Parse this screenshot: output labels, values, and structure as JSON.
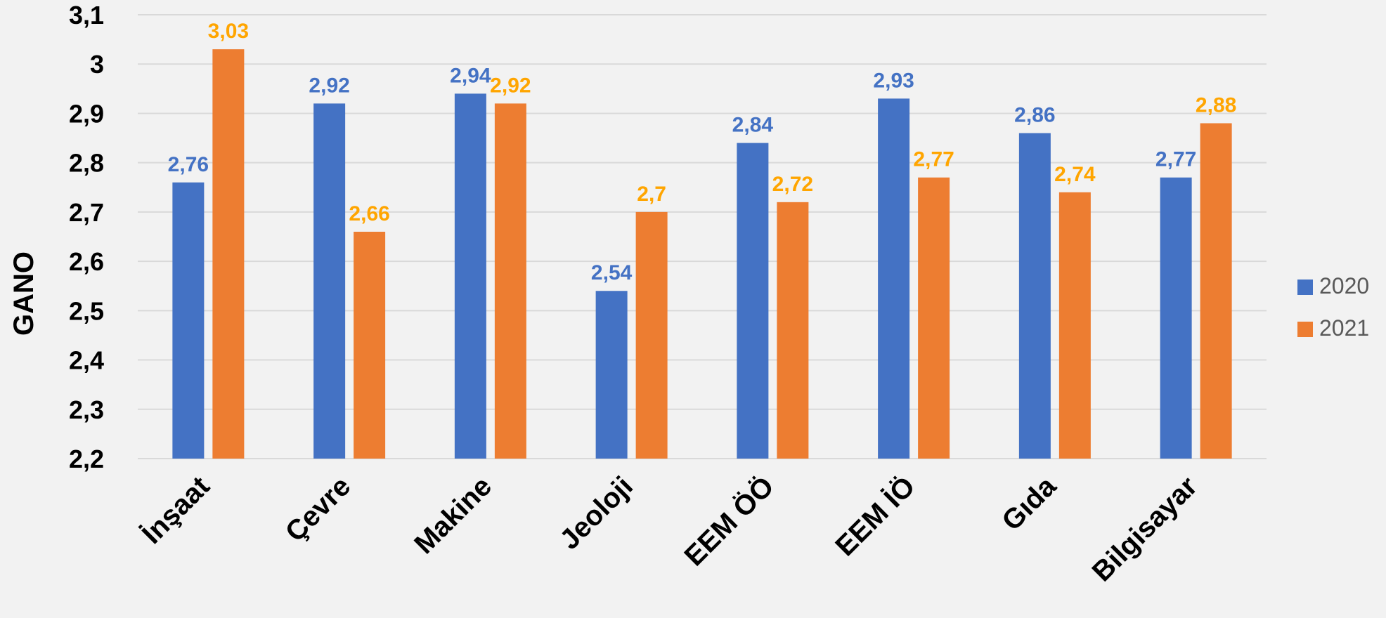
{
  "chart_data": {
    "type": "bar",
    "title": "",
    "xlabel": "",
    "ylabel": "GANO",
    "ylim": [
      2.2,
      3.1
    ],
    "yticks": [
      "2,2",
      "2,3",
      "2,4",
      "2,5",
      "2,6",
      "2,7",
      "2,8",
      "2,9",
      "3",
      "3,1"
    ],
    "categories": [
      "İnşaat",
      "Çevre",
      "Makine",
      "Jeoloji",
      "EEM ÖÖ",
      "EEM İÖ",
      "Gıda",
      "Bilgisayar"
    ],
    "series": [
      {
        "name": "2020",
        "color": "#4472c4",
        "label_color": "#4472c4",
        "values": [
          2.76,
          2.92,
          2.94,
          2.54,
          2.84,
          2.93,
          2.86,
          2.77
        ],
        "labels": [
          "2,76",
          "2,92",
          "2,94",
          "2,54",
          "2,84",
          "2,93",
          "2,86",
          "2,77"
        ]
      },
      {
        "name": "2021",
        "color": "#ed7d31",
        "label_color": "#ffa500",
        "values": [
          3.03,
          2.66,
          2.92,
          2.7,
          2.72,
          2.77,
          2.74,
          2.88
        ],
        "labels": [
          "3,03",
          "2,66",
          "2,92",
          "2,7",
          "2,72",
          "2,77",
          "2,74",
          "2,88"
        ]
      }
    ],
    "grid": true,
    "legend": "right"
  }
}
